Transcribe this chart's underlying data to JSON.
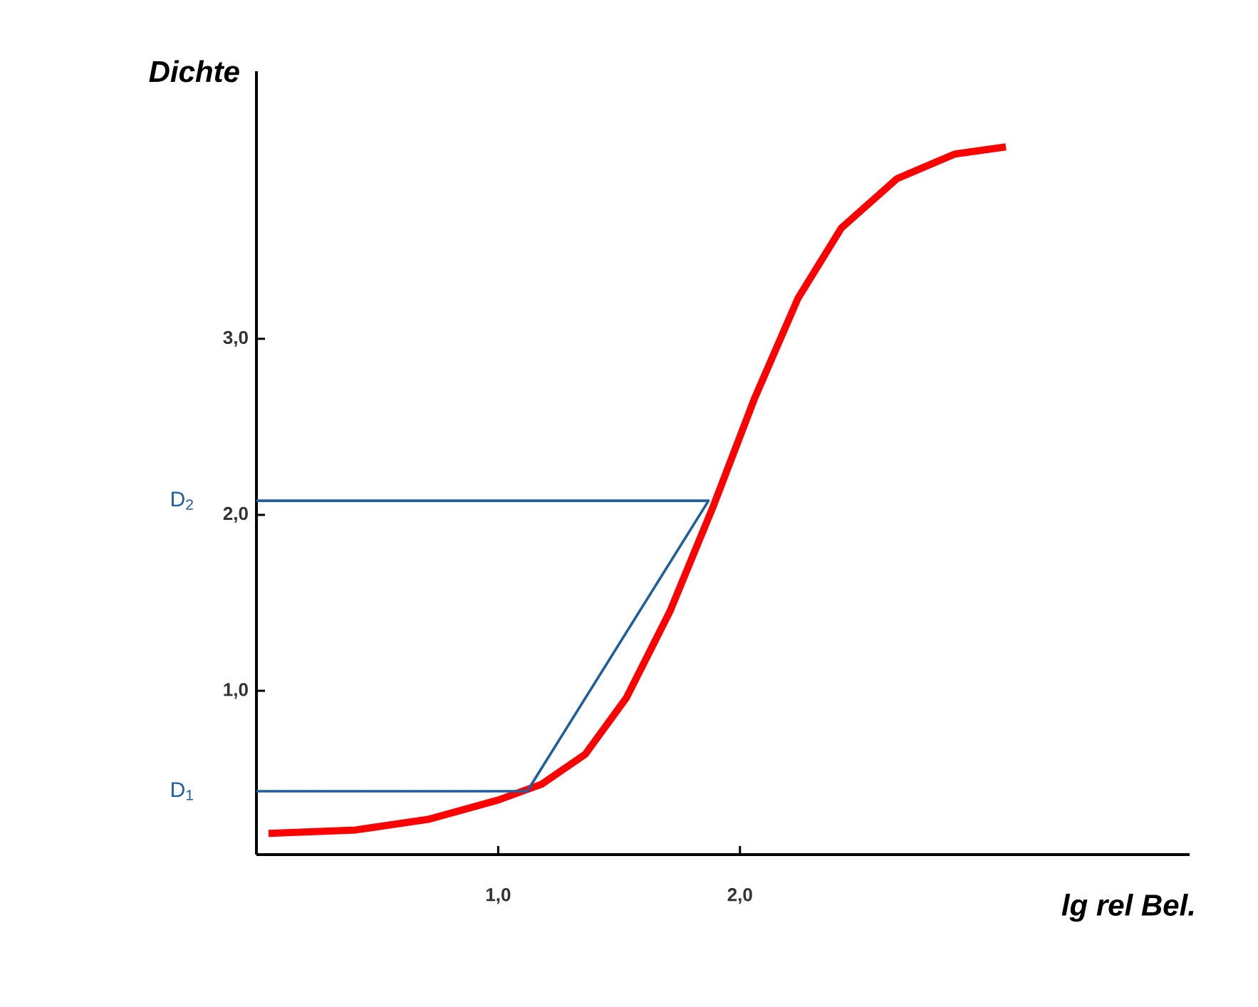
{
  "chart_data": {
    "type": "line",
    "xlabel": "lg rel Bel.",
    "ylabel": "Dichte",
    "xlim": [
      0,
      3.86
    ],
    "ylim": [
      0.07,
      4.52
    ],
    "xticks": [
      {
        "value": 1,
        "label": "1,0"
      },
      {
        "value": 2,
        "label": "2,0"
      }
    ],
    "yticks": [
      {
        "value": 1,
        "label": "1,0"
      },
      {
        "value": 2,
        "label": "2,0"
      },
      {
        "value": 3,
        "label": "3,0"
      }
    ],
    "marker": "none",
    "grid": false,
    "series": [
      {
        "color": "#ff0000",
        "x": [
          0.05,
          0.41,
          0.71,
          1.0,
          1.18,
          1.36,
          1.53,
          1.71,
          1.89,
          2.06,
          2.24,
          2.42,
          2.65,
          2.89,
          3.1
        ],
        "values": [
          0.19,
          0.21,
          0.27,
          0.38,
          0.47,
          0.64,
          0.96,
          1.45,
          2.05,
          2.66,
          3.23,
          3.63,
          3.91,
          4.05,
          4.09
        ]
      },
      {
        "color": "#1f5f9f",
        "x": [
          0,
          1.12,
          1.87,
          0
        ],
        "values": [
          0.43,
          0.43,
          2.08,
          2.08
        ]
      }
    ],
    "annotations": [
      {
        "text": "D$_{1}$",
        "x": 0,
        "y": 0.43
      },
      {
        "text": "D$_{2}$",
        "x": 0,
        "y": 2.08
      }
    ]
  }
}
